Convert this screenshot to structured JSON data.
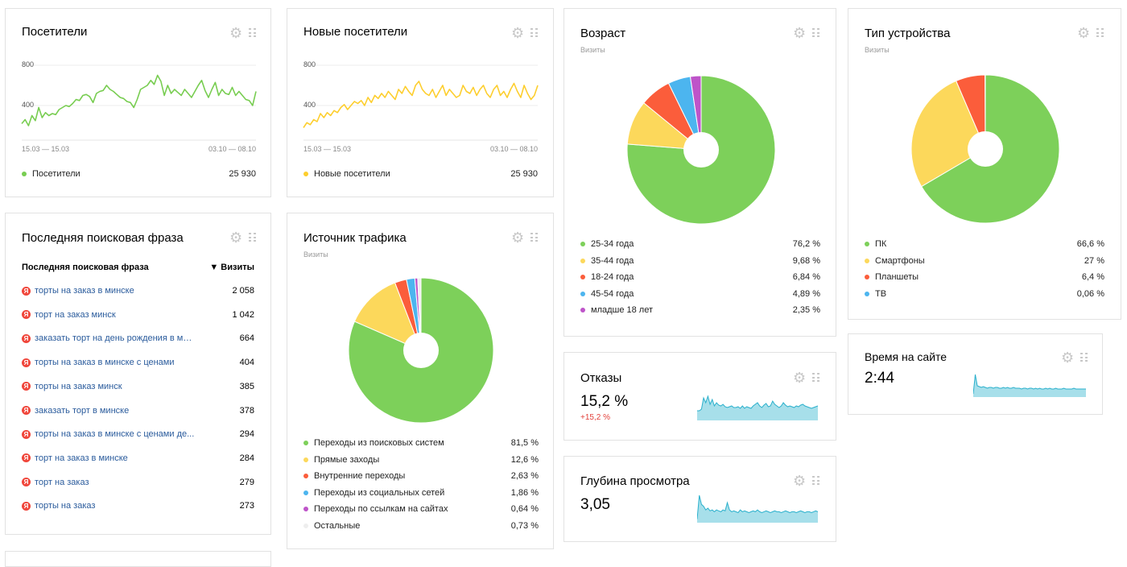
{
  "visitors": {
    "title": "Посетители",
    "y_ticks": [
      "800",
      "400"
    ],
    "date_left": "15.03 — 15.03",
    "date_right": "03.10 — 08.10",
    "legend_label": "Посетители",
    "legend_value": "25 930",
    "color": "#78cd51"
  },
  "new_visitors": {
    "title": "Новые посетители",
    "y_ticks": [
      "800",
      "400"
    ],
    "date_left": "15.03 — 15.03",
    "date_right": "03.10 — 08.10",
    "legend_label": "Новые посетители",
    "legend_value": "25 930",
    "color": "#fdce2d"
  },
  "age": {
    "title": "Возраст",
    "subtitle": "Визиты",
    "items": [
      {
        "label": "25-34 года",
        "value": "76,2 %",
        "color": "#7dd05a"
      },
      {
        "label": "35-44 года",
        "value": "9,68 %",
        "color": "#fcd85b"
      },
      {
        "label": "18-24 года",
        "value": "6,84 %",
        "color": "#fb5d3b"
      },
      {
        "label": "45-54 года",
        "value": "4,89 %",
        "color": "#4cb5ef"
      },
      {
        "label": "младше 18 лет",
        "value": "2,35 %",
        "color": "#be54c9"
      }
    ]
  },
  "device": {
    "title": "Тип устройства",
    "subtitle": "Визиты",
    "items": [
      {
        "label": "ПК",
        "value": "66,6 %",
        "color": "#7dd05a"
      },
      {
        "label": "Смартфоны",
        "value": "27 %",
        "color": "#fcd85b"
      },
      {
        "label": "Планшеты",
        "value": "6,4 %",
        "color": "#fb5d3b"
      },
      {
        "label": "ТВ",
        "value": "0,06 %",
        "color": "#4cb5ef"
      }
    ]
  },
  "phrases": {
    "title": "Последняя поисковая фраза",
    "col_phrase": "Последняя поисковая фраза",
    "col_visits": "▼ Визиты",
    "ya_letter": "Я",
    "rows": [
      {
        "phrase": "торты на заказ в минске",
        "visits": "2 058"
      },
      {
        "phrase": "торт на заказ минск",
        "visits": "1 042"
      },
      {
        "phrase": "заказать торт на день рождения в ми...",
        "visits": "664"
      },
      {
        "phrase": "торты на заказ в минске с ценами",
        "visits": "404"
      },
      {
        "phrase": "торты на заказ минск",
        "visits": "385"
      },
      {
        "phrase": "заказать торт в минске",
        "visits": "378"
      },
      {
        "phrase": "торты на заказ в минске с ценами де...",
        "visits": "294"
      },
      {
        "phrase": "торт на заказ в минске",
        "visits": "284"
      },
      {
        "phrase": "торт на заказ",
        "visits": "279"
      },
      {
        "phrase": "торты на заказ",
        "visits": "273"
      }
    ]
  },
  "traffic": {
    "title": "Источник трафика",
    "subtitle": "Визиты",
    "items": [
      {
        "label": "Переходы из поисковых систем",
        "value": "81,5 %",
        "color": "#7dd05a"
      },
      {
        "label": "Прямые заходы",
        "value": "12,6 %",
        "color": "#fcd85b"
      },
      {
        "label": "Внутренние переходы",
        "value": "2,63 %",
        "color": "#fb5d3b"
      },
      {
        "label": "Переходы из социальных сетей",
        "value": "1,86 %",
        "color": "#4cb5ef"
      },
      {
        "label": "Переходы по ссылкам на сайтах",
        "value": "0,64 %",
        "color": "#be54c9"
      },
      {
        "label": "Остальные",
        "value": "0,73 %",
        "color": "#eeeeee"
      }
    ]
  },
  "bounce": {
    "title": "Отказы",
    "value": "15,2 %",
    "delta": "+15,2 %"
  },
  "depth": {
    "title": "Глубина просмотра",
    "value": "3,05"
  },
  "time": {
    "title": "Время на сайте",
    "value": "2:44"
  },
  "colors": {
    "spark_fill": "#a7dfea",
    "spark_line": "#2ab0cc"
  },
  "chart_data": [
    {
      "type": "line",
      "title": "Посетители",
      "y_ticks": [
        400,
        800
      ],
      "ylim": [
        0,
        900
      ],
      "series": [
        {
          "name": "Посетители",
          "values": [
            220,
            260,
            200,
            300,
            250,
            380,
            280,
            330,
            300,
            320,
            310,
            360,
            380,
            400,
            390,
            420,
            460,
            450,
            500,
            510,
            490,
            430,
            520,
            540,
            550,
            600,
            560,
            540,
            510,
            480,
            470,
            440,
            430,
            380,
            460,
            560,
            580,
            600,
            650,
            610,
            700,
            640,
            500,
            600,
            520,
            560,
            530,
            500,
            560,
            520,
            480,
            540,
            600,
            650,
            550,
            480,
            560,
            630,
            500,
            560,
            520,
            510,
            580,
            500,
            540,
            500,
            460,
            450,
            400,
            540
          ]
        }
      ]
    },
    {
      "type": "line",
      "title": "Новые посетители",
      "y_ticks": [
        400,
        800
      ],
      "ylim": [
        0,
        900
      ],
      "series": [
        {
          "name": "Новые посетители",
          "values": [
            180,
            230,
            210,
            260,
            240,
            320,
            280,
            330,
            300,
            350,
            330,
            380,
            410,
            360,
            400,
            440,
            420,
            450,
            400,
            480,
            430,
            500,
            470,
            520,
            480,
            540,
            500,
            460,
            560,
            520,
            590,
            540,
            500,
            600,
            640,
            560,
            520,
            500,
            560,
            480,
            540,
            600,
            500,
            560,
            520,
            480,
            500,
            600,
            540,
            520,
            580,
            500,
            560,
            600,
            520,
            480,
            560,
            600,
            500,
            540,
            480,
            560,
            620,
            540,
            480,
            600,
            520,
            460,
            500,
            600
          ]
        }
      ]
    },
    {
      "type": "pie",
      "title": "Возраст",
      "labels": [
        "25-34 года",
        "35-44 года",
        "18-24 года",
        "45-54 года",
        "младше 18 лет"
      ],
      "values": [
        76.2,
        9.68,
        6.84,
        4.89,
        2.35
      ]
    },
    {
      "type": "pie",
      "title": "Тип устройства",
      "labels": [
        "ПК",
        "Смартфоны",
        "Планшеты",
        "ТВ"
      ],
      "values": [
        66.6,
        27,
        6.4,
        0.06
      ]
    },
    {
      "type": "pie",
      "title": "Источник трафика",
      "labels": [
        "Переходы из поисковых систем",
        "Прямые заходы",
        "Внутренние переходы",
        "Переходы из социальных сетей",
        "Переходы по ссылкам на сайтах",
        "Остальные"
      ],
      "values": [
        81.5,
        12.6,
        2.63,
        1.86,
        0.64,
        0.73
      ]
    },
    {
      "type": "area",
      "title": "Отказы",
      "series": [
        {
          "values": [
            12,
            12,
            14,
            28,
            22,
            30,
            20,
            26,
            18,
            22,
            19,
            18,
            20,
            17,
            16,
            17,
            18,
            16,
            16,
            17,
            15,
            18,
            15,
            17,
            16,
            15,
            18,
            20,
            22,
            18,
            16,
            19,
            21,
            17,
            18,
            24,
            20,
            18,
            16,
            18,
            22,
            19,
            17,
            18,
            17,
            16,
            18,
            17,
            19,
            20,
            18,
            17,
            16,
            15,
            16,
            17,
            18
          ]
        }
      ]
    },
    {
      "type": "area",
      "title": "Глубина просмотра",
      "series": [
        {
          "values": [
            4,
            30,
            20,
            18,
            14,
            16,
            13,
            14,
            12,
            14,
            13,
            12,
            14,
            13,
            22,
            14,
            12,
            13,
            12,
            11,
            14,
            12,
            13,
            12,
            11,
            12,
            13,
            12,
            14,
            12,
            11,
            12,
            13,
            12,
            11,
            12,
            13,
            12,
            12,
            11,
            12,
            13,
            12,
            11,
            12,
            12,
            11,
            12,
            13,
            12,
            11,
            12,
            12,
            11,
            12,
            13,
            12
          ]
        }
      ]
    },
    {
      "type": "area",
      "title": "Время на сайте",
      "series": [
        {
          "values": [
            4,
            28,
            14,
            13,
            12,
            13,
            12,
            11,
            12,
            12,
            11,
            12,
            12,
            11,
            11,
            12,
            11,
            12,
            11,
            11,
            12,
            11,
            11,
            11,
            10,
            11,
            11,
            10,
            11,
            11,
            10,
            11,
            10,
            11,
            10,
            10,
            11,
            10,
            11,
            10,
            10,
            11,
            10,
            10,
            10,
            11,
            10,
            10,
            10,
            10,
            11,
            10,
            10,
            10,
            10,
            10,
            10
          ]
        }
      ]
    }
  ]
}
